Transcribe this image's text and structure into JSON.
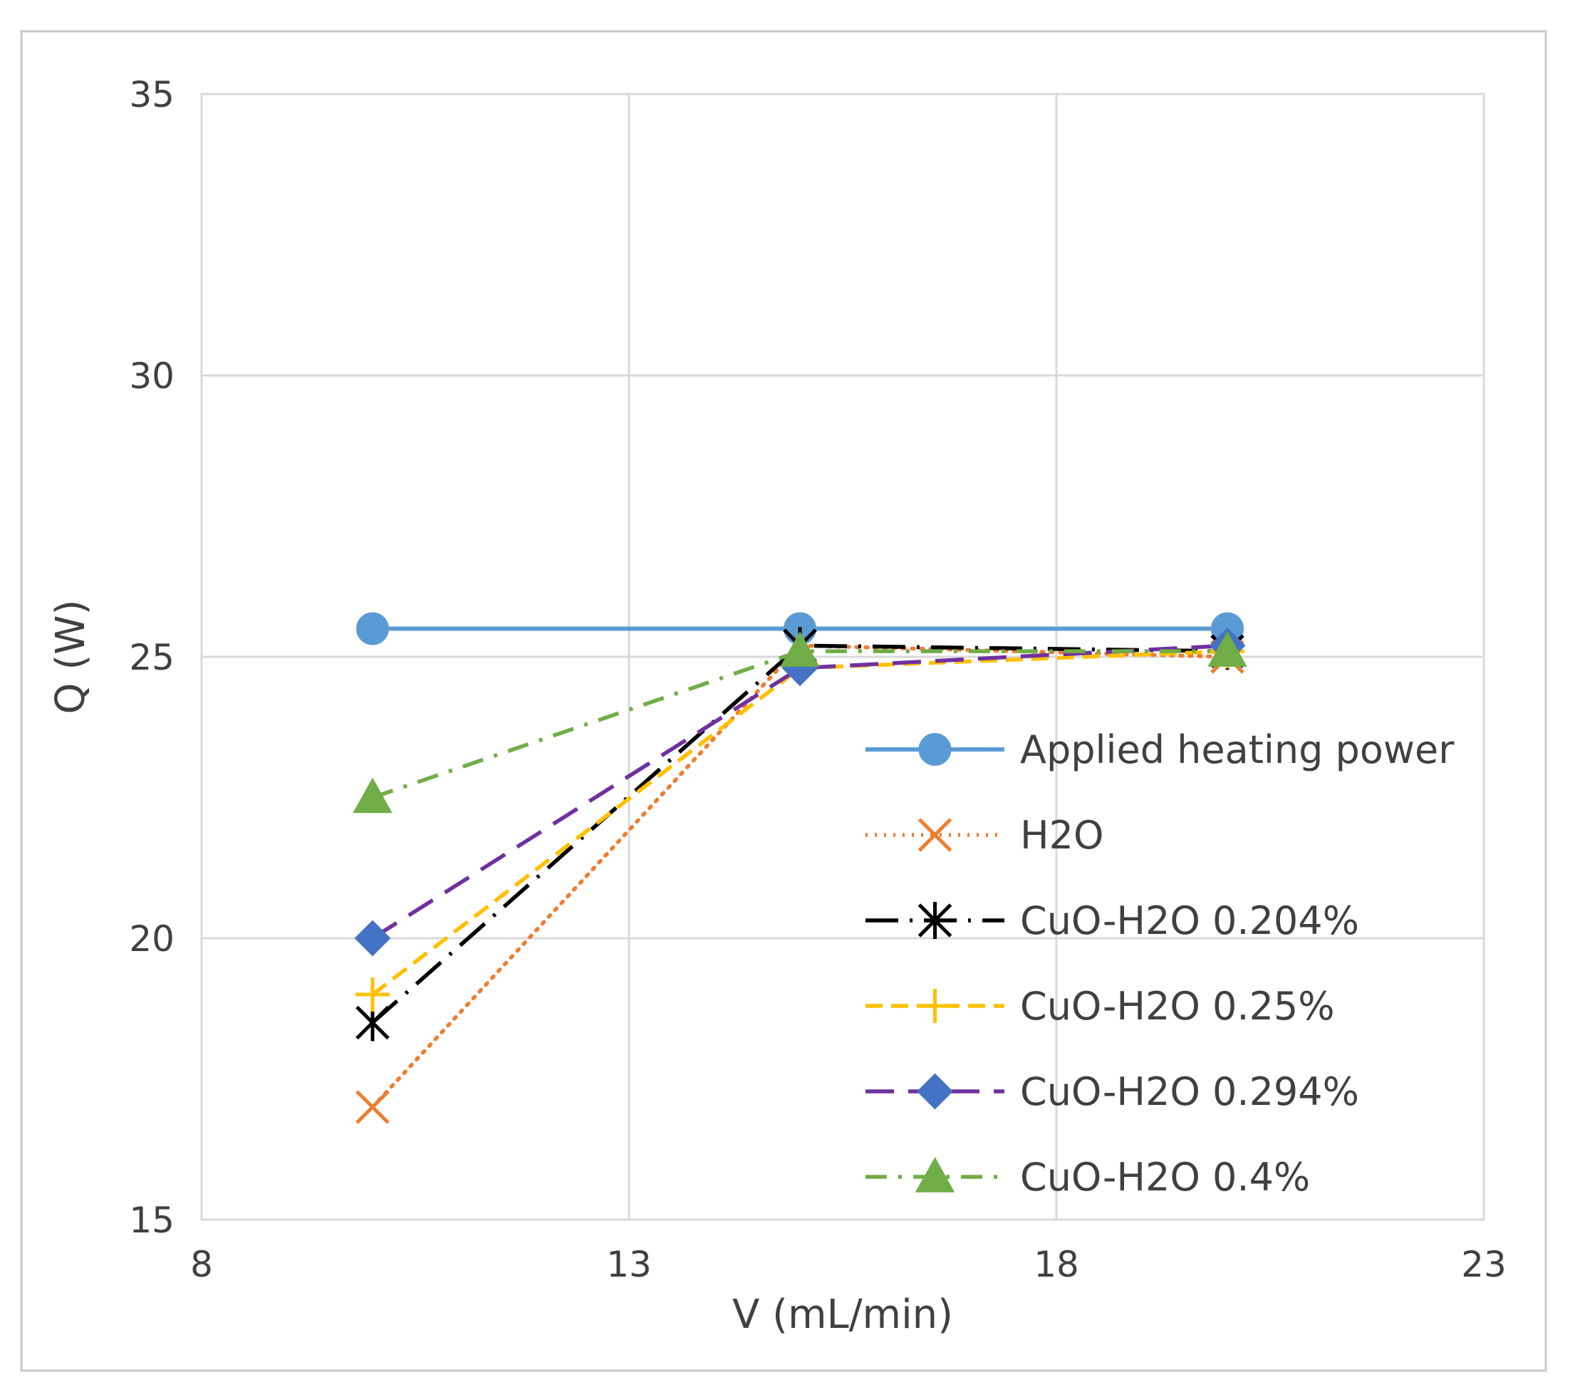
{
  "chart_data": {
    "type": "line",
    "title": "",
    "xlabel": "V (mL/min)",
    "ylabel": "Q (W)",
    "xlim": [
      8,
      23
    ],
    "ylim": [
      15,
      35
    ],
    "xticks": [
      8,
      13,
      18,
      23
    ],
    "yticks": [
      15,
      20,
      25,
      30,
      35
    ],
    "grid": true,
    "legend_position": "center-right",
    "x": [
      10,
      15,
      20
    ],
    "series": [
      {
        "name": "Applied heating power",
        "values": [
          25.5,
          25.5,
          25.5
        ],
        "color": "#5B9BD5",
        "marker": "circle",
        "dash": "solid"
      },
      {
        "name": "H2O",
        "values": [
          17.0,
          25.2,
          25.0
        ],
        "color": "#ED7D31",
        "marker": "x",
        "dash": "dot"
      },
      {
        "name": "CuO-H2O 0.204%",
        "values": [
          18.5,
          25.2,
          25.1
        ],
        "color": "#000000",
        "marker": "star",
        "dash": "longdashdot"
      },
      {
        "name": "CuO-H2O 0.25%",
        "values": [
          19.0,
          24.8,
          25.1
        ],
        "color": "#FFC000",
        "marker": "plus",
        "dash": "dash"
      },
      {
        "name": "CuO-H2O 0.294%",
        "values": [
          20.0,
          24.8,
          25.2
        ],
        "color": "#7030A0",
        "marker": "diamond",
        "dash": "longdash",
        "marker_color": "#4472C4"
      },
      {
        "name": "CuO-H2O 0.4%",
        "values": [
          22.5,
          25.1,
          25.1
        ],
        "color": "#70AD47",
        "marker": "triangle",
        "dash": "dashdot"
      }
    ]
  }
}
